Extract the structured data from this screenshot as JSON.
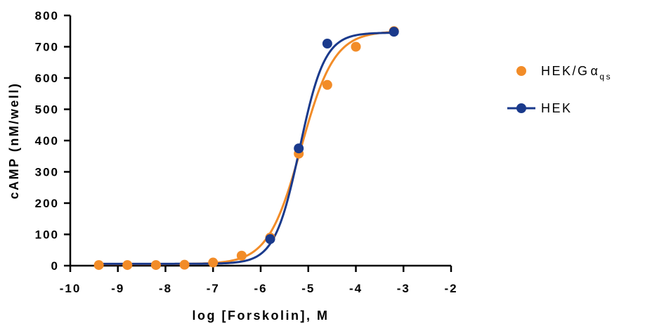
{
  "chart_data": {
    "type": "scatter",
    "xlabel": "log [Forskolin], M",
    "ylabel": "cAMP (nM/well)",
    "xlim": [
      -10,
      -2
    ],
    "ylim": [
      0,
      800
    ],
    "xticks": [
      -10,
      -9,
      -8,
      -7,
      -6,
      -5,
      -4,
      -3,
      -2
    ],
    "yticks": [
      0,
      100,
      200,
      300,
      400,
      500,
      600,
      700,
      800
    ],
    "grid": false,
    "legend_position": "right",
    "series": [
      {
        "name": "HEK/G",
        "name_greek": "α",
        "name_subscript": "qs",
        "color": "#F28C28",
        "marker": "circle",
        "x": [
          -9.4,
          -8.8,
          -8.2,
          -7.6,
          -7.0,
          -6.4,
          -5.8,
          -5.2,
          -4.6,
          -4.0,
          -3.2
        ],
        "y": [
          2,
          2,
          2,
          3,
          10,
          32,
          90,
          358,
          578,
          700,
          750
        ],
        "fit": {
          "bottom": 5,
          "top": 750,
          "logEC50": -5.15,
          "hill": 1.25
        }
      },
      {
        "name": "HEK",
        "color": "#1A3A8C",
        "marker": "circle",
        "x": [
          -5.8,
          -5.2,
          -4.6,
          -3.2
        ],
        "y": [
          85,
          375,
          710,
          748
        ],
        "fit": {
          "bottom": 6,
          "top": 745,
          "logEC50": -5.18,
          "hill": 1.65
        }
      }
    ]
  }
}
